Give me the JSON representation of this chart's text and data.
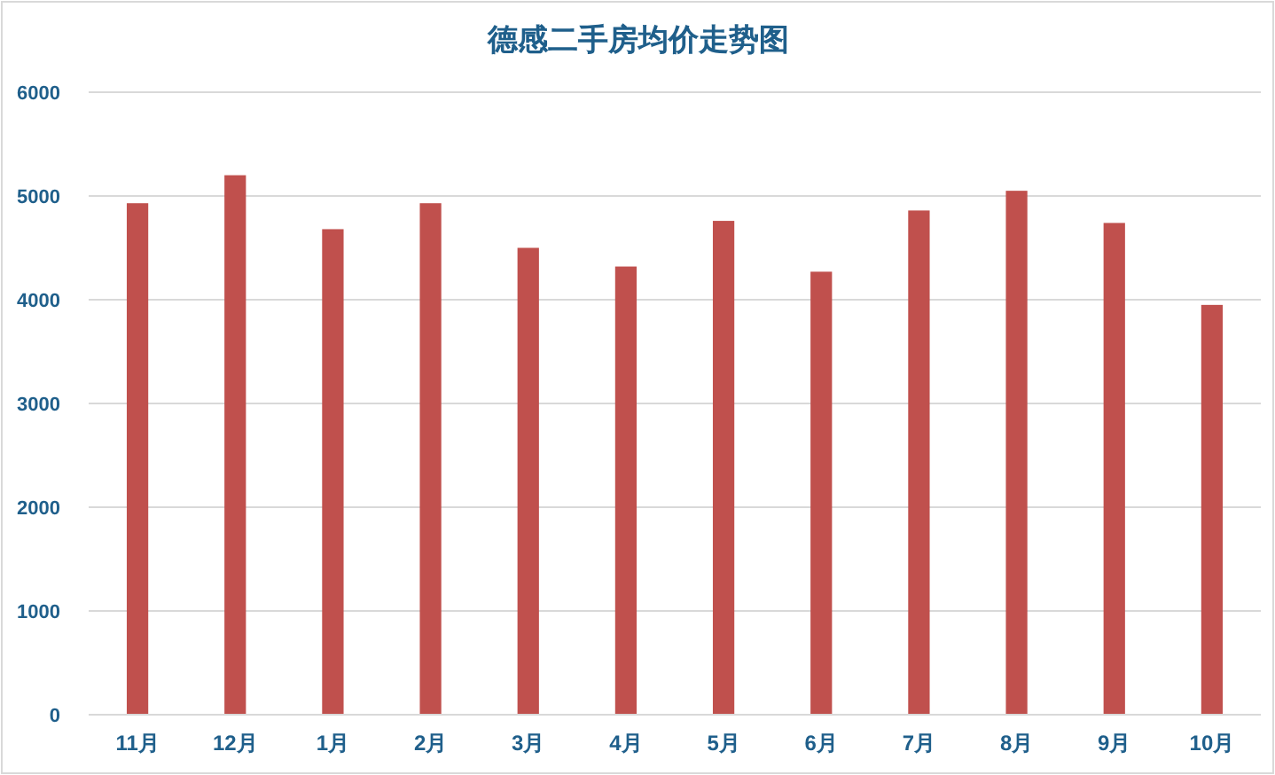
{
  "chart_data": {
    "type": "bar",
    "title": "德感二手房均价走势图",
    "categories": [
      "11月",
      "12月",
      "1月",
      "2月",
      "3月",
      "4月",
      "5月",
      "6月",
      "7月",
      "8月",
      "9月",
      "10月"
    ],
    "values": [
      4930,
      5200,
      4680,
      4930,
      4500,
      4320,
      4760,
      4270,
      4860,
      5050,
      4740,
      3950
    ],
    "color": "#c0504d",
    "ylim": [
      0,
      6000
    ],
    "yticks": [
      0,
      1000,
      2000,
      3000,
      4000,
      5000,
      6000
    ],
    "grid": "y"
  }
}
